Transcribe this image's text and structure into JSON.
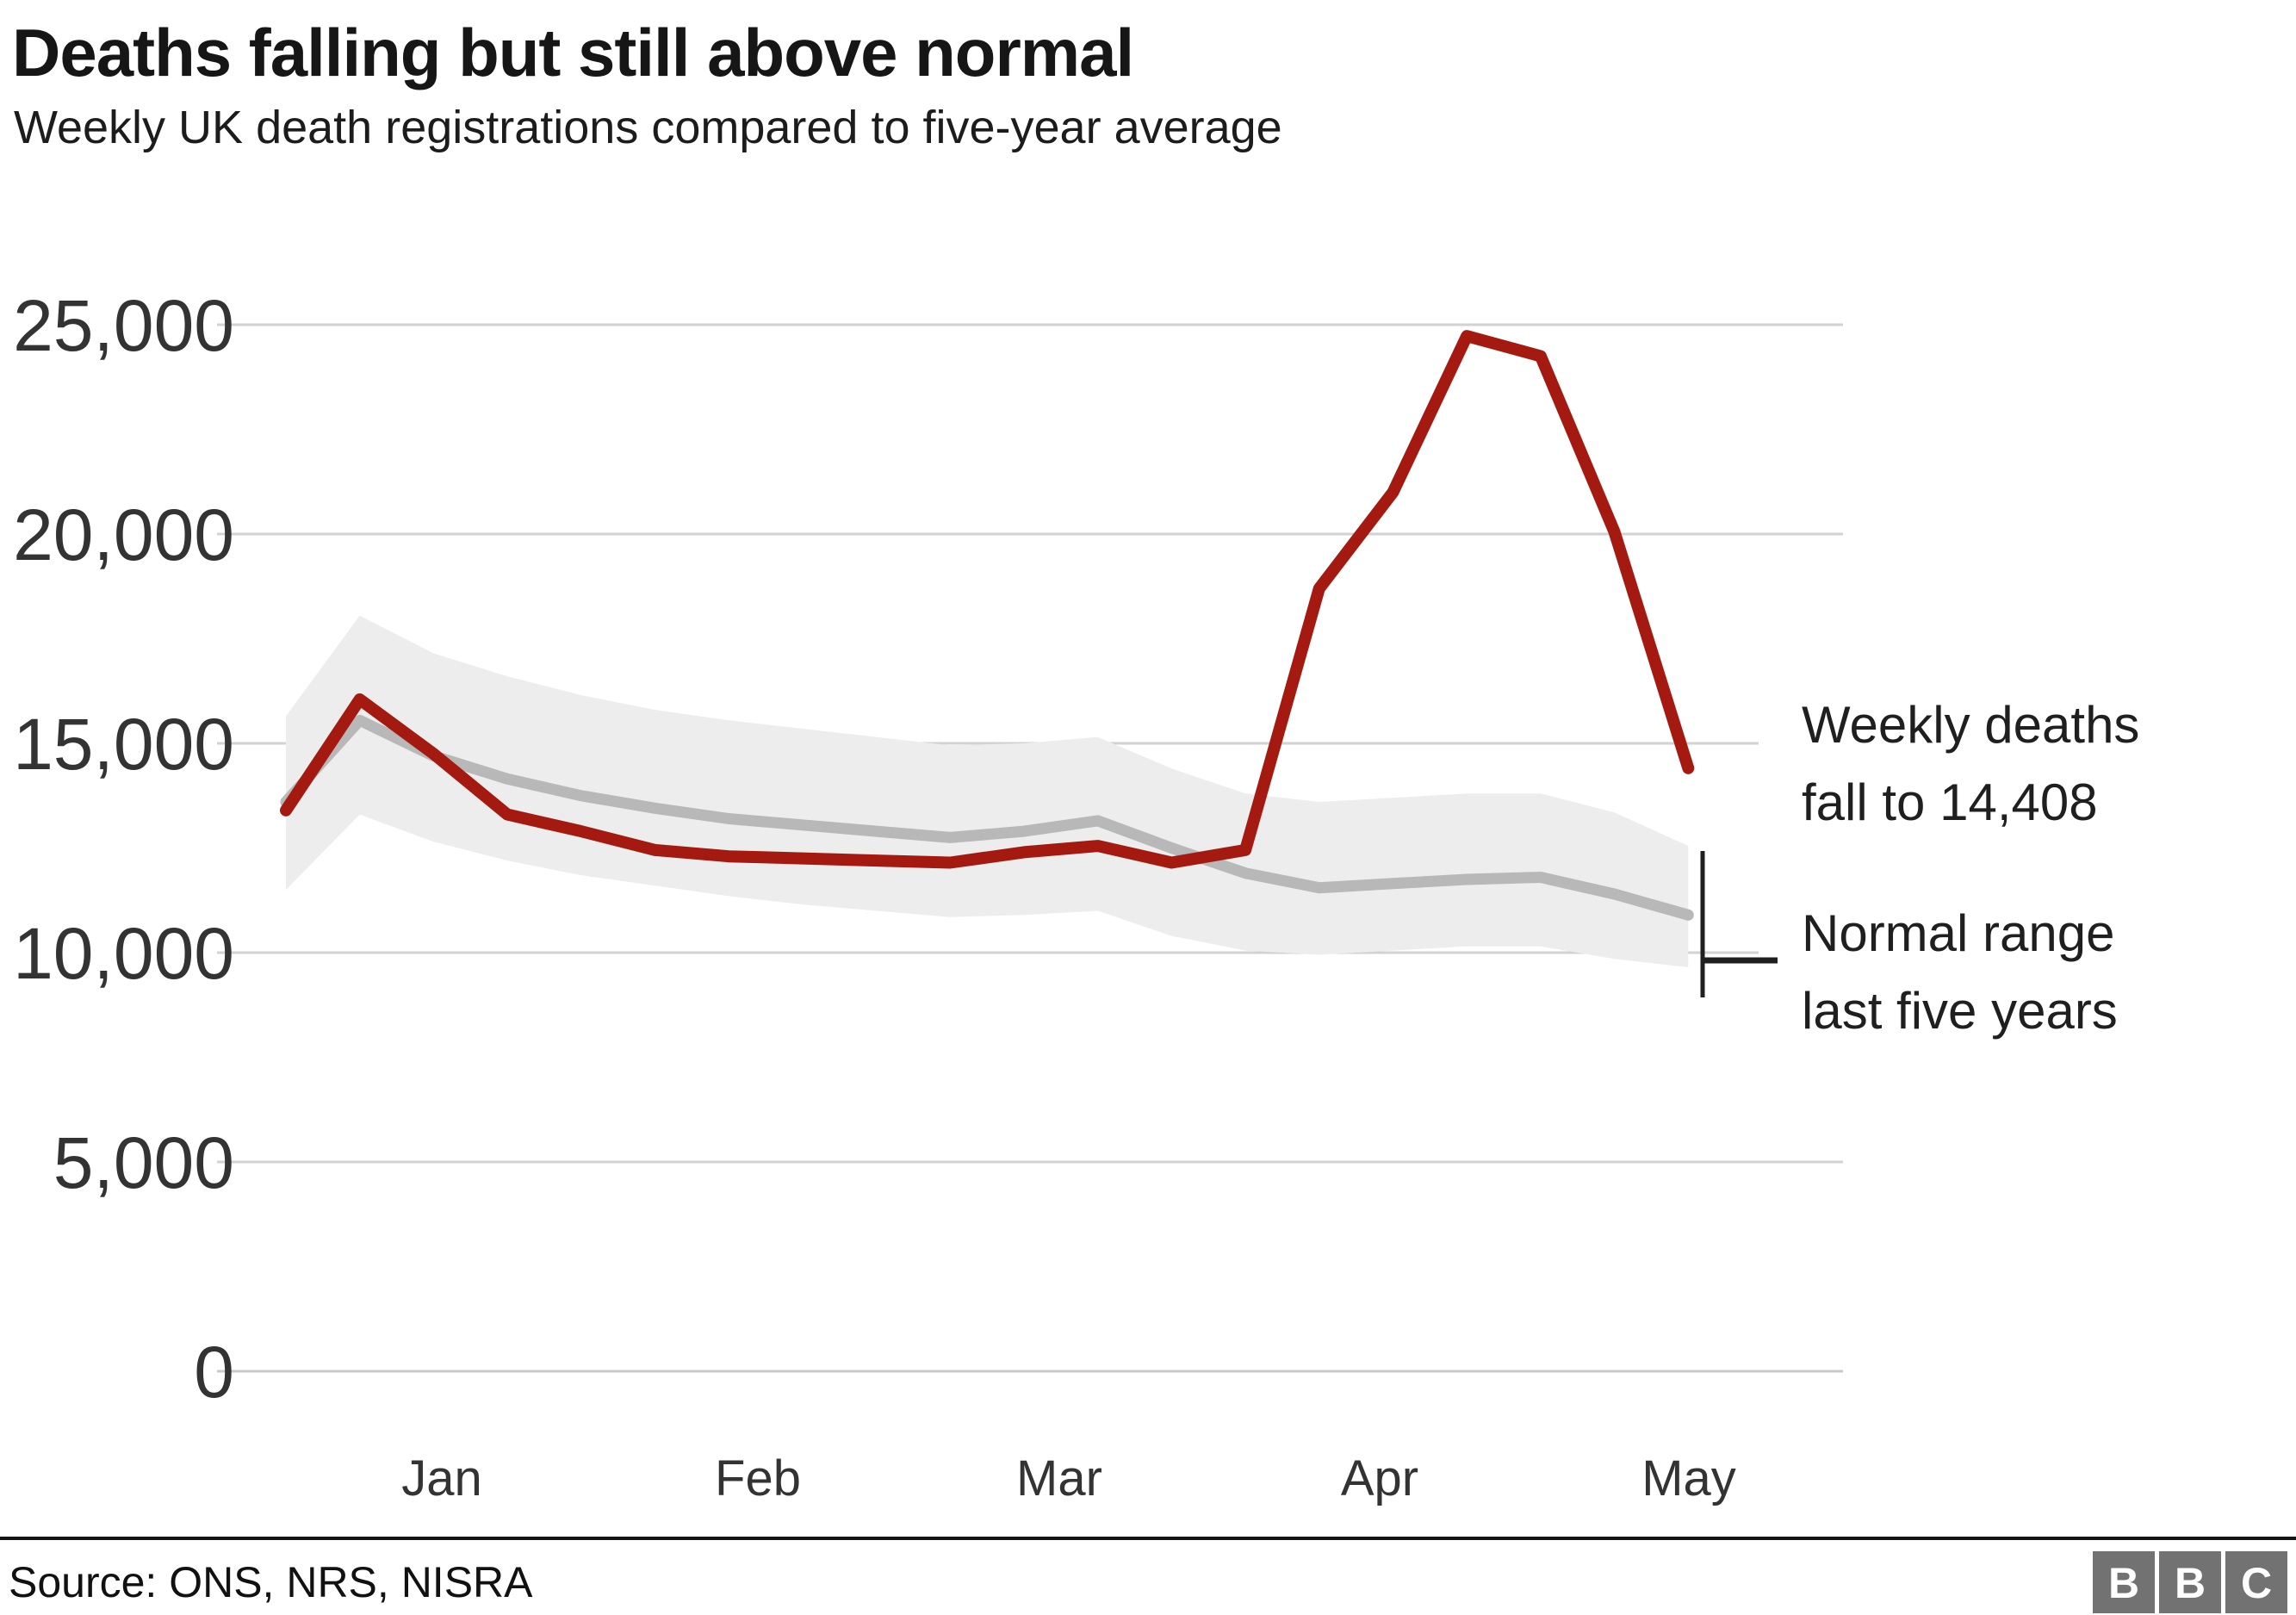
{
  "header": {
    "title": "Deaths falling but still above normal",
    "subtitle": "Weekly UK death registrations compared to five-year average"
  },
  "chart_data": {
    "type": "line",
    "title": "Deaths falling but still above normal",
    "subtitle": "Weekly UK death registrations compared to five-year average",
    "x_tick_labels": [
      "Jan",
      "Feb",
      "Mar",
      "Apr",
      "May"
    ],
    "y_tick_labels": [
      "0",
      "5,000",
      "10,000",
      "15,000",
      "20,000",
      "25,000"
    ],
    "ylim": [
      0,
      25000
    ],
    "grid": "horizontal",
    "legend_position": "annotated-right",
    "colors": {
      "weekly_deaths": "#a41a10",
      "five_year_average": "#b8b8b8",
      "normal_range_band": "#ededed",
      "gridline": "#d2d2d2",
      "annotation_ink": "#1f1f1f"
    },
    "series": [
      {
        "name": "Weekly deaths",
        "values": [
          13400,
          16050,
          14750,
          13300,
          12900,
          12450,
          12300,
          12250,
          12200,
          12150,
          12400,
          12550,
          12150,
          12450,
          18700,
          21000,
          24730,
          24250,
          20050,
          14408
        ]
      },
      {
        "name": "Five-year average",
        "values": [
          13600,
          15550,
          14700,
          14150,
          13750,
          13450,
          13200,
          13050,
          12900,
          12750,
          12900,
          13150,
          12500,
          11900,
          11550,
          11650,
          11750,
          11800,
          11400,
          10900
        ]
      }
    ],
    "band": {
      "name": "Normal range last five years",
      "upper": [
        15650,
        18050,
        17150,
        16600,
        16150,
        15800,
        15550,
        15350,
        15150,
        14950,
        15000,
        15150,
        14400,
        13800,
        13600,
        13700,
        13800,
        13800,
        13350,
        12550
      ],
      "lower": [
        11500,
        13300,
        12650,
        12200,
        11850,
        11600,
        11350,
        11150,
        11000,
        10850,
        10900,
        11000,
        10400,
        10050,
        9950,
        10050,
        10150,
        10150,
        9850,
        9650
      ]
    },
    "annotations": [
      {
        "lines": [
          "Weekly deaths",
          "fall to 14,408"
        ],
        "value": 14408
      },
      {
        "lines": [
          "Normal range",
          "last five years"
        ]
      }
    ],
    "layout": {
      "x_start": 332,
      "x_step": 85.7,
      "y_zero": 1592,
      "y_top": 377,
      "y_max": 25000
    }
  },
  "footer": {
    "source": "Source: ONS, NRS, NISRA",
    "logo_letters": [
      "B",
      "B",
      "C"
    ]
  }
}
